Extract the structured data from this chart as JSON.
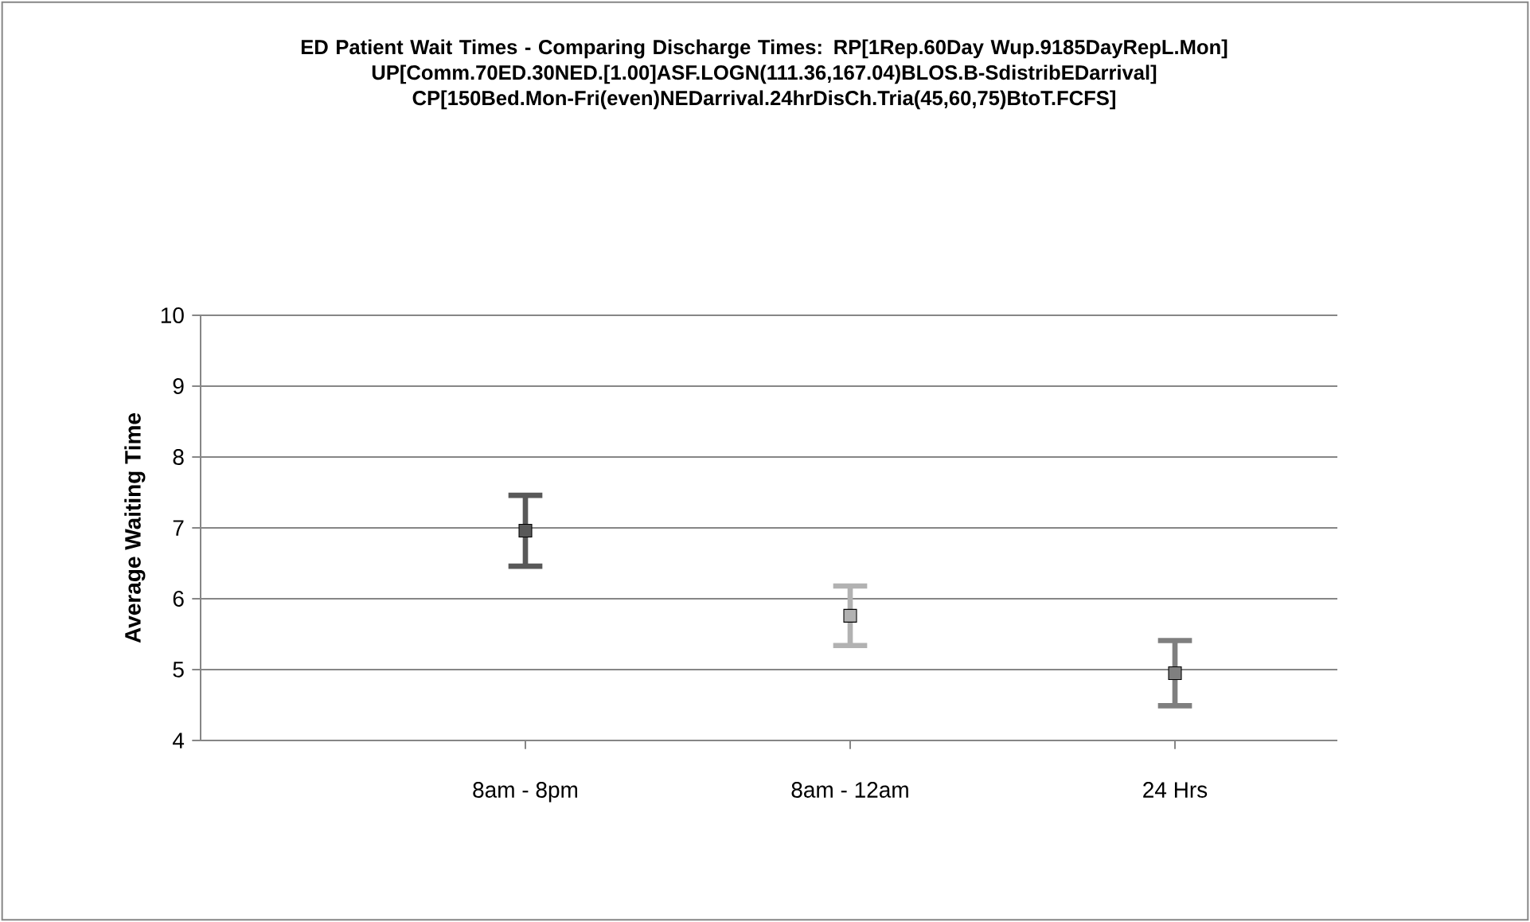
{
  "chart_data": {
    "type": "scatter",
    "title": "ED Patient Wait Times - Comparing Discharge Times: RP[1Rep.60Day Wup.9185DayRepL.Mon] UP[Comm.70ED.30NED.[1.00]ASF.LOGN(111.36,167.04)BLOS.B-SdistribEDarrival] CP[150Bed.Mon-Fri(even)NEDarrival.24hrDisCh.Tria(45,60,75)BtoT.FCFS]",
    "ylabel": "Average Waiting Time",
    "categories": [
      "8am - 8pm",
      "8am - 12am",
      "24 Hrs"
    ],
    "series": [
      {
        "color": "#595959",
        "values": [
          6.96,
          null,
          null
        ],
        "errors": [
          0.5,
          null,
          null
        ]
      },
      {
        "color": "#b2b2b2",
        "values": [
          null,
          5.76,
          null
        ],
        "errors": [
          null,
          0.42,
          null
        ]
      },
      {
        "color": "#7f7f7f",
        "values": [
          null,
          null,
          4.95
        ],
        "errors": [
          null,
          null,
          0.46
        ]
      }
    ],
    "ylim": [
      4,
      10
    ],
    "yticks": [
      4,
      5,
      6,
      7,
      8,
      9,
      10
    ],
    "grid": "y",
    "marker": "square"
  }
}
